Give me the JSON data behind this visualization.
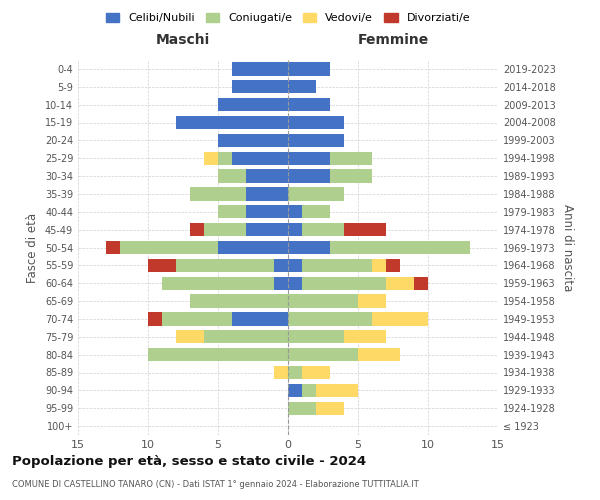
{
  "age_groups": [
    "0-4",
    "5-9",
    "10-14",
    "15-19",
    "20-24",
    "25-29",
    "30-34",
    "35-39",
    "40-44",
    "45-49",
    "50-54",
    "55-59",
    "60-64",
    "65-69",
    "70-74",
    "75-79",
    "80-84",
    "85-89",
    "90-94",
    "95-99",
    "100+"
  ],
  "birth_years": [
    "2019-2023",
    "2014-2018",
    "2009-2013",
    "2004-2008",
    "1999-2003",
    "1994-1998",
    "1989-1993",
    "1984-1988",
    "1979-1983",
    "1974-1978",
    "1969-1973",
    "1964-1968",
    "1959-1963",
    "1954-1958",
    "1949-1953",
    "1944-1948",
    "1939-1943",
    "1934-1938",
    "1929-1933",
    "1924-1928",
    "≤ 1923"
  ],
  "maschi": {
    "celibi": [
      4,
      4,
      5,
      8,
      5,
      4,
      3,
      3,
      3,
      3,
      5,
      1,
      1,
      0,
      4,
      0,
      0,
      0,
      0,
      0,
      0
    ],
    "coniugati": [
      0,
      0,
      0,
      0,
      0,
      1,
      2,
      4,
      2,
      3,
      7,
      7,
      8,
      7,
      5,
      6,
      10,
      0,
      0,
      0,
      0
    ],
    "vedovi": [
      0,
      0,
      0,
      0,
      0,
      1,
      0,
      0,
      0,
      0,
      0,
      0,
      0,
      0,
      0,
      2,
      0,
      1,
      0,
      0,
      0
    ],
    "divorziati": [
      0,
      0,
      0,
      0,
      0,
      0,
      0,
      0,
      0,
      1,
      1,
      2,
      0,
      0,
      1,
      0,
      0,
      0,
      0,
      0,
      0
    ]
  },
  "femmine": {
    "nubili": [
      3,
      2,
      3,
      4,
      4,
      3,
      3,
      0,
      1,
      1,
      3,
      1,
      1,
      0,
      0,
      0,
      0,
      0,
      1,
      0,
      0
    ],
    "coniugate": [
      0,
      0,
      0,
      0,
      0,
      3,
      3,
      4,
      2,
      3,
      10,
      5,
      6,
      5,
      6,
      4,
      5,
      1,
      1,
      2,
      0
    ],
    "vedove": [
      0,
      0,
      0,
      0,
      0,
      0,
      0,
      0,
      0,
      0,
      0,
      1,
      2,
      2,
      4,
      3,
      3,
      2,
      3,
      2,
      0
    ],
    "divorziate": [
      0,
      0,
      0,
      0,
      0,
      0,
      0,
      0,
      0,
      3,
      0,
      1,
      1,
      0,
      0,
      0,
      0,
      0,
      0,
      0,
      0
    ]
  },
  "colors": {
    "celibi": "#4472C4",
    "coniugati": "#AECF8D",
    "vedovi": "#FFD966",
    "divorziati": "#C0392B"
  },
  "xlim": 15,
  "title": "Popolazione per età, sesso e stato civile - 2024",
  "subtitle": "COMUNE DI CASTELLINO TANARO (CN) - Dati ISTAT 1° gennaio 2024 - Elaborazione TUTTITALIA.IT",
  "ylabel_left": "Fasce di età",
  "ylabel_right": "Anni di nascita",
  "xlabel_maschi": "Maschi",
  "xlabel_femmine": "Femmine",
  "legend_labels": [
    "Celibi/Nubili",
    "Coniugati/e",
    "Vedovi/e",
    "Divorziati/e"
  ],
  "background_color": "#FFFFFF",
  "grid_color": "#CCCCCC"
}
